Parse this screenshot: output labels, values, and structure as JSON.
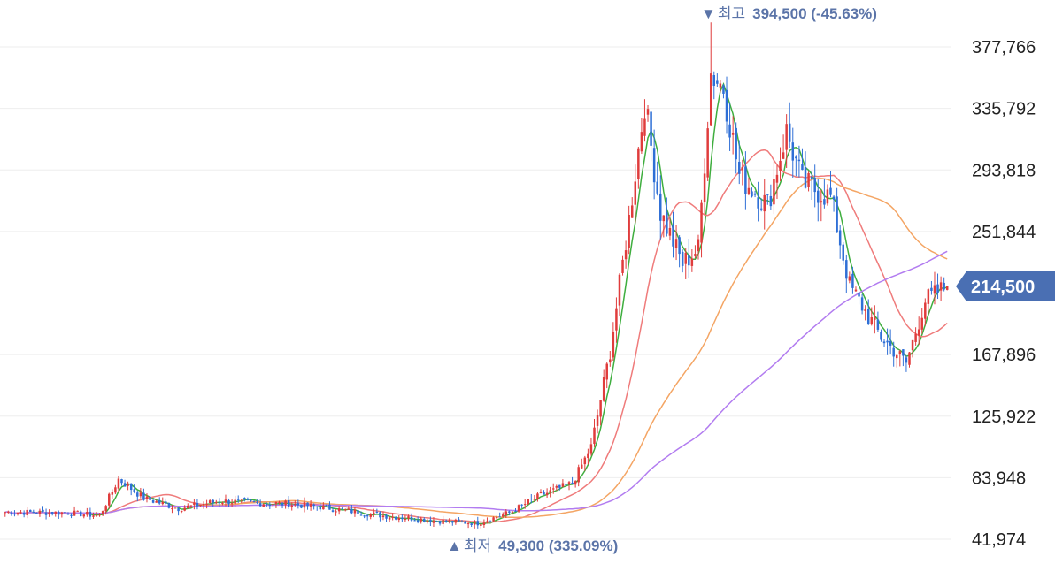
{
  "chart_data": {
    "type": "candlestick",
    "y_axis": {
      "position": "right",
      "ticks": [
        377766,
        335792,
        293818,
        251844,
        167896,
        125922,
        83948,
        41974
      ],
      "tick_labels": [
        "377,766",
        "335,792",
        "293,818",
        "251,844",
        "167,896",
        "125,922",
        "83,948",
        "41,974"
      ],
      "ylim": [
        38000,
        402000
      ]
    },
    "current_price": {
      "value": 214500,
      "label": "214,500",
      "color": "#4a6fb3"
    },
    "high_annotation": {
      "marker": "▼",
      "label": "최고",
      "value_text": "394,500 (-45.63%)",
      "value": 394500,
      "change_percent": -45.63
    },
    "low_annotation": {
      "marker": "▲",
      "label": "최저",
      "value_text": "49,300 (335.09%)",
      "value": 49300,
      "change_percent": 335.09
    },
    "candle_colors": {
      "up": "#e03c3c",
      "down": "#2f6fd6"
    },
    "moving_average_colors": [
      "#3fae3f",
      "#ef7b7b",
      "#f4a564",
      "#b27cf0"
    ],
    "grid": true,
    "legend": "none",
    "candles_count": 300,
    "price_path_keypoints": [
      {
        "i": 0,
        "close": 60500
      },
      {
        "i": 20,
        "close": 60000
      },
      {
        "i": 30,
        "close": 58000
      },
      {
        "i": 36,
        "close": 83000
      },
      {
        "i": 44,
        "close": 70000
      },
      {
        "i": 55,
        "close": 63000
      },
      {
        "i": 68,
        "close": 68000
      },
      {
        "i": 90,
        "close": 66000
      },
      {
        "i": 100,
        "close": 64000
      },
      {
        "i": 120,
        "close": 58000
      },
      {
        "i": 140,
        "close": 54000
      },
      {
        "i": 150,
        "close": 53000
      },
      {
        "i": 160,
        "close": 60000
      },
      {
        "i": 170,
        "close": 72000
      },
      {
        "i": 180,
        "close": 80000
      },
      {
        "i": 186,
        "close": 105000
      },
      {
        "i": 192,
        "close": 170000
      },
      {
        "i": 198,
        "close": 260000
      },
      {
        "i": 203,
        "close": 340000
      },
      {
        "i": 208,
        "close": 265000
      },
      {
        "i": 215,
        "close": 230000
      },
      {
        "i": 220,
        "close": 240000
      },
      {
        "i": 224,
        "close": 360000
      },
      {
        "i": 228,
        "close": 350000
      },
      {
        "i": 233,
        "close": 290000
      },
      {
        "i": 242,
        "close": 270000
      },
      {
        "i": 248,
        "close": 320000
      },
      {
        "i": 253,
        "close": 285000
      },
      {
        "i": 262,
        "close": 275000
      },
      {
        "i": 268,
        "close": 215000
      },
      {
        "i": 278,
        "close": 180000
      },
      {
        "i": 286,
        "close": 162000
      },
      {
        "i": 292,
        "close": 205000
      },
      {
        "i": 299,
        "close": 214500
      }
    ]
  }
}
